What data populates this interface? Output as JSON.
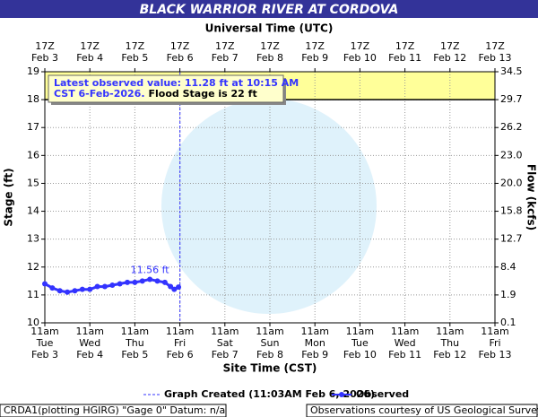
{
  "chart_data": {
    "type": "line",
    "title": "BLACK WARRIOR RIVER AT CORDOVA",
    "top_axis_label": "Universal Time (UTC)",
    "xlabel": "Site Time (CST)",
    "ylabel": "Stage (ft)",
    "y2label": "Flow (kcfs)",
    "x": [
      "2026-02-03T11:00",
      "2026-02-03T15:00",
      "2026-02-03T19:00",
      "2026-02-03T23:00",
      "2026-02-04T03:00",
      "2026-02-04T07:00",
      "2026-02-04T11:00",
      "2026-02-04T15:00",
      "2026-02-04T19:00",
      "2026-02-04T23:00",
      "2026-02-05T03:00",
      "2026-02-05T07:00",
      "2026-02-05T11:00",
      "2026-02-05T15:00",
      "2026-02-05T19:00",
      "2026-02-05T23:00",
      "2026-02-06T03:00",
      "2026-02-06T06:00",
      "2026-02-06T08:00",
      "2026-02-06T10:15"
    ],
    "series": [
      {
        "name": "Observed",
        "color": "#3333ff",
        "values": [
          11.4,
          11.25,
          11.15,
          11.1,
          11.15,
          11.2,
          11.2,
          11.3,
          11.3,
          11.35,
          11.4,
          11.45,
          11.45,
          11.5,
          11.56,
          11.5,
          11.45,
          11.3,
          11.2,
          11.28
        ]
      }
    ],
    "peak_label": "11.56 ft",
    "xlim": [
      "2026-02-03T11:00",
      "2026-02-13T11:00"
    ],
    "xticks": [
      {
        "value": "2026-02-03T11:00",
        "label": [
          "11am",
          "Tue",
          "Feb 3"
        ]
      },
      {
        "value": "2026-02-04T11:00",
        "label": [
          "11am",
          "Wed",
          "Feb 4"
        ]
      },
      {
        "value": "2026-02-05T11:00",
        "label": [
          "11am",
          "Thu",
          "Feb 5"
        ]
      },
      {
        "value": "2026-02-06T11:00",
        "label": [
          "11am",
          "Fri",
          "Feb 6"
        ]
      },
      {
        "value": "2026-02-07T11:00",
        "label": [
          "11am",
          "Sat",
          "Feb 7"
        ]
      },
      {
        "value": "2026-02-08T11:00",
        "label": [
          "11am",
          "Sun",
          "Feb 8"
        ]
      },
      {
        "value": "2026-02-09T11:00",
        "label": [
          "11am",
          "Mon",
          "Feb 9"
        ]
      },
      {
        "value": "2026-02-10T11:00",
        "label": [
          "11am",
          "Tue",
          "Feb 10"
        ]
      },
      {
        "value": "2026-02-11T11:00",
        "label": [
          "11am",
          "Wed",
          "Feb 11"
        ]
      },
      {
        "value": "2026-02-12T11:00",
        "label": [
          "11am",
          "Thu",
          "Feb 12"
        ]
      },
      {
        "value": "2026-02-13T11:00",
        "label": [
          "11am",
          "Fri",
          "Feb 13"
        ]
      }
    ],
    "top_xticks": [
      {
        "value": "2026-02-03T11:00",
        "label": [
          "17Z",
          "Feb 3"
        ]
      },
      {
        "value": "2026-02-04T11:00",
        "label": [
          "17Z",
          "Feb 4"
        ]
      },
      {
        "value": "2026-02-05T11:00",
        "label": [
          "17Z",
          "Feb 5"
        ]
      },
      {
        "value": "2026-02-06T11:00",
        "label": [
          "17Z",
          "Feb 6"
        ]
      },
      {
        "value": "2026-02-07T11:00",
        "label": [
          "17Z",
          "Feb 7"
        ]
      },
      {
        "value": "2026-02-08T11:00",
        "label": [
          "17Z",
          "Feb 8"
        ]
      },
      {
        "value": "2026-02-09T11:00",
        "label": [
          "17Z",
          "Feb 9"
        ]
      },
      {
        "value": "2026-02-10T11:00",
        "label": [
          "17Z",
          "Feb 10"
        ]
      },
      {
        "value": "2026-02-11T11:00",
        "label": [
          "17Z",
          "Feb 11"
        ]
      },
      {
        "value": "2026-02-12T11:00",
        "label": [
          "17Z",
          "Feb 12"
        ]
      },
      {
        "value": "2026-02-13T11:00",
        "label": [
          "17Z",
          "Feb 13"
        ]
      }
    ],
    "ylim": [
      10,
      19
    ],
    "yticks": [
      10,
      11,
      12,
      13,
      14,
      15,
      16,
      17,
      18,
      19
    ],
    "y2ticks": [
      0.1,
      1.9,
      8.4,
      12.7,
      15.8,
      {
        "value": 20,
        "label": "20.0"
      },
      {
        "value": 23,
        "label": "23.0"
      },
      26.2,
      29.7,
      34.5
    ],
    "grid": true,
    "flood_line": 18,
    "flood_fill_color": "#ffff99",
    "latest_text": [
      "Latest observed value: 11.28 ft at 10:15 AM",
      "CST 6-Feb-2026.",
      "Flood Stage is 22 ft"
    ],
    "created": {
      "x": "2026-02-06T11:03",
      "label": "Graph Created (11:03AM Feb 6, 2026)"
    },
    "footer_left": "CRDA1(plotting HGIRG) \"Gage 0\" Datum: n/a",
    "footer_right": "Observations courtesy of US Geological Survey"
  }
}
